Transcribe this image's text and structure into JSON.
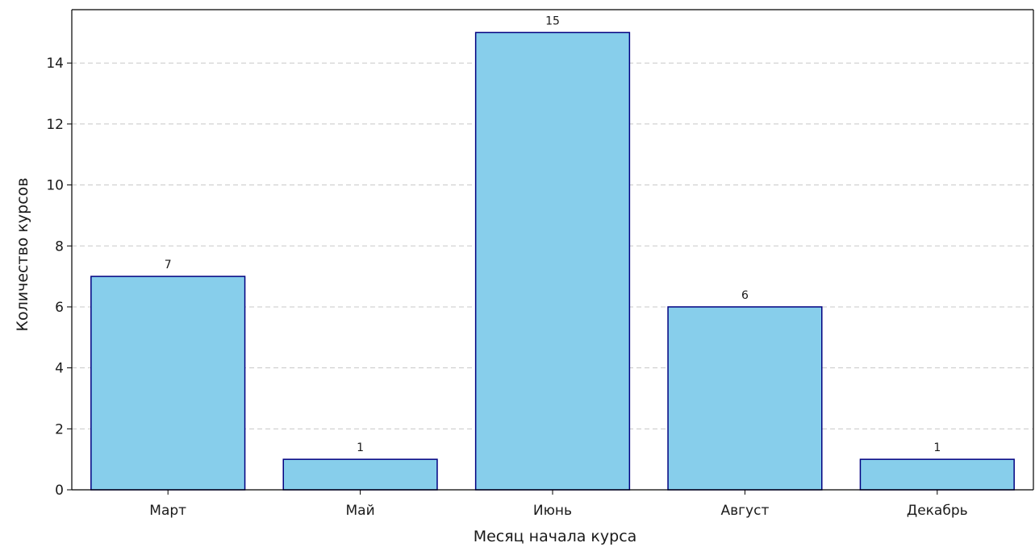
{
  "chart_data": {
    "type": "bar",
    "title": "",
    "xlabel": "Месяц начала курса",
    "ylabel": "Количество курсов",
    "categories": [
      "Март",
      "Май",
      "Июнь",
      "Август",
      "Декабрь"
    ],
    "values": [
      7,
      1,
      15,
      6,
      1
    ],
    "data_labels": [
      "7",
      "1",
      "15",
      "6",
      "1"
    ],
    "y_ticks": [
      0,
      2,
      4,
      6,
      8,
      10,
      12,
      14
    ],
    "y_tick_labels": [
      "0",
      "2",
      "4",
      "6",
      "8",
      "10",
      "12",
      "14"
    ],
    "ylim": [
      0,
      15.75
    ],
    "grid": "y-dashed",
    "legend": "none",
    "colors": {
      "bar_fill": "#87CEEB",
      "bar_edge": "#000080",
      "grid": "#c8c8c8",
      "axis": "#000000"
    }
  }
}
